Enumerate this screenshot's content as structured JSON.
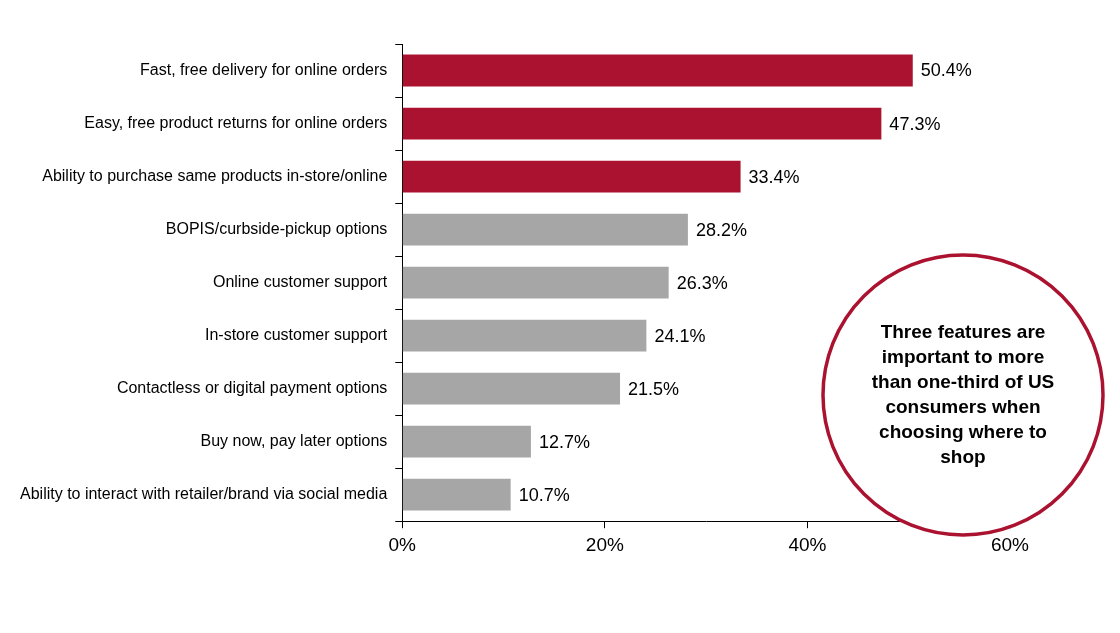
{
  "chart_data": {
    "type": "bar",
    "orientation": "horizontal",
    "categories": [
      "Fast, free delivery for online orders",
      "Easy, free product returns for online orders",
      "Ability to purchase same products in-store/online",
      "BOPIS/curbside-pickup options",
      "Online customer support",
      "In-store customer support",
      "Contactless or digital payment options",
      "Buy now, pay later options",
      "Ability to interact with retailer/brand via social media"
    ],
    "values": [
      50.4,
      47.3,
      33.4,
      28.2,
      26.3,
      24.1,
      21.5,
      12.7,
      10.7
    ],
    "value_labels": [
      "50.4%",
      "47.3%",
      "33.4%",
      "28.2%",
      "26.3%",
      "24.1%",
      "21.5%",
      "12.7%",
      "10.7%"
    ],
    "colors": [
      "#ab1230",
      "#ab1230",
      "#ab1230",
      "#a6a6a6",
      "#a6a6a6",
      "#a6a6a6",
      "#a6a6a6",
      "#a6a6a6",
      "#a6a6a6"
    ],
    "xlim": [
      0,
      60
    ],
    "xticks": [
      {
        "value": 0,
        "label": "0%"
      },
      {
        "value": 20,
        "label": "20%"
      },
      {
        "value": 40,
        "label": "40%"
      },
      {
        "value": 60,
        "label": "60%"
      }
    ],
    "grid": false,
    "data_labels": true,
    "annotation": "Three features are important to more than one-third of US consumers when choosing where to shop"
  }
}
